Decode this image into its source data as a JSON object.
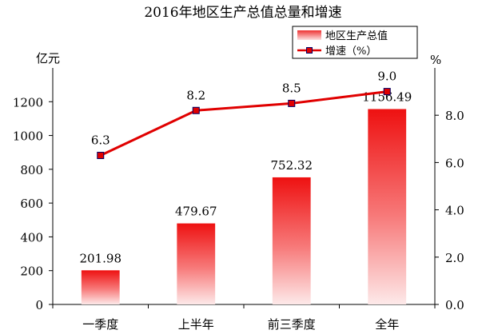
{
  "chart_data": {
    "type": "bar+line",
    "title": "2016年地区生产总值总量和增速",
    "y_left_unit": "亿元",
    "y_right_unit": "%",
    "categories": [
      "一季度",
      "上半年",
      "前三季度",
      "全年"
    ],
    "y_left_ticks": [
      "0",
      "200",
      "400",
      "600",
      "800",
      "1000",
      "1200"
    ],
    "y_right_ticks": [
      "0.0",
      "2.0",
      "4.0",
      "6.0",
      "8.0"
    ],
    "y_left_lim": [
      0,
      1400
    ],
    "y_right_lim": [
      0,
      10
    ],
    "series": [
      {
        "name": "地区生产总值",
        "type": "bar",
        "axis": "left",
        "values": [
          201.98,
          479.67,
          752.32,
          1156.49
        ],
        "labels": [
          "201.98",
          "479.67",
          "752.32",
          "1156.49"
        ],
        "color": "#ee1c1c"
      },
      {
        "name": "增速（%）",
        "type": "line",
        "axis": "right",
        "values": [
          6.3,
          8.2,
          8.5,
          9.0
        ],
        "labels": [
          "6.3",
          "8.2",
          "8.5",
          "9.0"
        ],
        "color": "#e00000"
      }
    ],
    "legend_position": "top-right",
    "grid": false
  }
}
